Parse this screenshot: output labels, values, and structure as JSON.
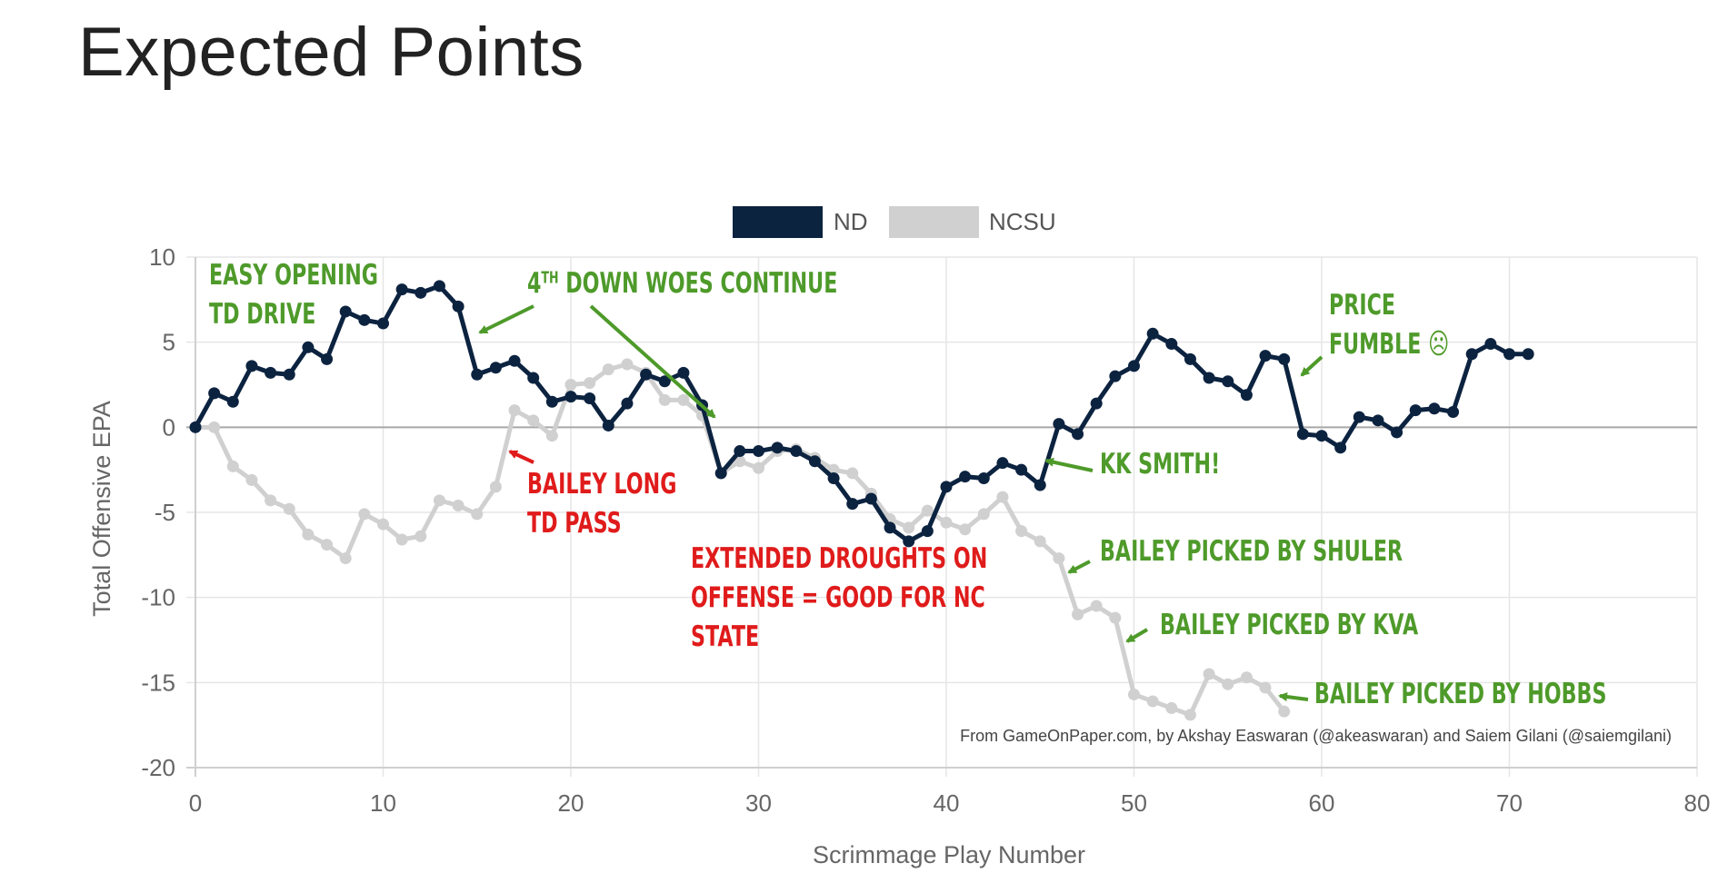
{
  "page": {
    "title": "Expected Points"
  },
  "chart_data": {
    "type": "line",
    "title": "Expected Points",
    "xlabel": "Scrimmage Play Number",
    "ylabel": "Total Offensive EPA",
    "xlim": [
      0,
      80
    ],
    "ylim": [
      -20,
      10
    ],
    "x_ticks": [
      "0",
      "10",
      "20",
      "30",
      "40",
      "50",
      "60",
      "70",
      "80"
    ],
    "y_ticks": [
      "10",
      "5",
      "0",
      "-5",
      "-10",
      "-15",
      "-20"
    ],
    "grid": true,
    "legend_position": "top-center",
    "series": [
      {
        "name": "ND",
        "color": "#0c2340",
        "values": [
          0.0,
          2.0,
          1.5,
          3.6,
          3.2,
          3.1,
          4.7,
          4.0,
          6.8,
          6.3,
          6.1,
          8.1,
          7.9,
          8.3,
          7.1,
          3.1,
          3.5,
          3.9,
          2.9,
          1.5,
          1.8,
          1.7,
          0.1,
          1.4,
          3.1,
          2.7,
          3.2,
          1.3,
          -2.7,
          -1.4,
          -1.4,
          -1.2,
          -1.4,
          -2.0,
          -3.0,
          -4.5,
          -4.2,
          -5.9,
          -6.7,
          -6.1,
          -3.5,
          -2.9,
          -3.0,
          -2.1,
          -2.5,
          -3.4,
          0.2,
          -0.4,
          1.4,
          3.0,
          3.6,
          5.5,
          4.9,
          4.0,
          2.9,
          2.7,
          1.9,
          4.2,
          4.0,
          -0.4,
          -0.5,
          -1.2,
          0.6,
          0.4,
          -0.3,
          1.0,
          1.1,
          0.9,
          4.3,
          4.9,
          4.3,
          4.3
        ]
      },
      {
        "name": "NCSU",
        "color": "#d0d0d0",
        "values": [
          0.0,
          0.0,
          -2.3,
          -3.1,
          -4.3,
          -4.8,
          -6.3,
          -6.9,
          -7.7,
          -5.1,
          -5.7,
          -6.6,
          -6.4,
          -4.3,
          -4.6,
          -5.1,
          -3.5,
          1.0,
          0.4,
          -0.5,
          2.5,
          2.6,
          3.4,
          3.7,
          3.2,
          1.6,
          1.6,
          0.7,
          -2.7,
          -2.0,
          -2.4,
          -1.4,
          -1.3,
          -1.8,
          -2.5,
          -2.7,
          -3.9,
          -5.4,
          -5.9,
          -4.9,
          -5.6,
          -6.0,
          -5.1,
          -4.1,
          -6.1,
          -6.7,
          -7.7,
          -11.0,
          -10.5,
          -11.2,
          -15.7,
          -16.1,
          -16.5,
          -16.9,
          -14.5,
          -15.1,
          -14.7,
          -15.3,
          -16.7
        ]
      }
    ],
    "annotations": [
      {
        "text": [
          "EASY OPENING",
          "TD DRIVE"
        ],
        "color": "#4e9a2a"
      },
      {
        "text": [
          "4",
          "TH",
          " DOWN WOES CONTINUE"
        ],
        "color": "#4e9a2a"
      },
      {
        "text": [
          "BAILEY LONG",
          "TD PASS"
        ],
        "color": "#e01b1b"
      },
      {
        "text": [
          "EXTENDED DROUGHTS ON",
          "OFFENSE = GOOD FOR NC",
          "STATE"
        ],
        "color": "#e01b1b"
      },
      {
        "text": [
          "KK SMITH!"
        ],
        "color": "#4e9a2a"
      },
      {
        "text": [
          "BAILEY PICKED BY SHULER"
        ],
        "color": "#4e9a2a"
      },
      {
        "text": [
          "BAILEY PICKED BY KVA"
        ],
        "color": "#4e9a2a"
      },
      {
        "text": [
          "BAILEY PICKED BY HOBBS"
        ],
        "color": "#4e9a2a"
      },
      {
        "text": [
          "PRICE",
          "FUMBLE ☹"
        ],
        "color": "#4e9a2a"
      }
    ],
    "source_note": "From GameOnPaper.com, by Akshay Easwaran (@akeaswaran) and Saiem Gilani (@saiemgilani)"
  }
}
